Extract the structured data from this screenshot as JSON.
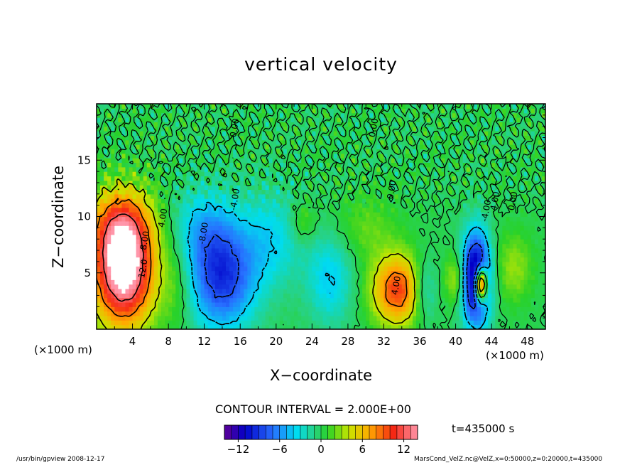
{
  "chart_data": {
    "type": "heatmap",
    "title": "vertical velocity",
    "xlabel": "X−coordinate",
    "ylabel": "Z−coordinate",
    "x_unit_left": "(×1000 m)",
    "x_unit_right": "(×1000 m)",
    "xlim": [
      0,
      50
    ],
    "ylim": [
      0,
      20
    ],
    "x_ticks": [
      "4",
      "8",
      "12",
      "16",
      "20",
      "24",
      "28",
      "32",
      "36",
      "40",
      "44",
      "48"
    ],
    "y_ticks": [
      "5",
      "10",
      "15"
    ],
    "contour_interval_text": "CONTOUR INTERVAL = 2.000E+00",
    "contour_interval": 2.0,
    "colorbar": {
      "range": [
        -14,
        14
      ],
      "tick_labels": [
        "−12",
        "−6",
        "0",
        "6",
        "12"
      ],
      "tick_values": [
        -12,
        -6,
        0,
        6,
        12
      ]
    },
    "contour_labels": [
      "4.00",
      "8.00",
      "12.0",
      "-8.00",
      "4.00",
      "-4.00",
      "0.00",
      "0.00",
      "0.00",
      "4.00",
      "-4.00",
      "0.00"
    ],
    "features": [
      {
        "x": 3.0,
        "z": 5.5,
        "value": 16,
        "sign": "updraft"
      },
      {
        "x": 14.0,
        "z": 4.5,
        "value": -8,
        "sign": "downdraft"
      },
      {
        "x": 33.5,
        "z": 3.5,
        "value": 8,
        "sign": "updraft"
      },
      {
        "x": 42.5,
        "z": 4.0,
        "value": -14,
        "sign": "downdraft"
      },
      {
        "x": 42.8,
        "z": 4.0,
        "value": 14,
        "sign": "updraft"
      }
    ],
    "time_label": "t=435000 s"
  },
  "footer": {
    "left": "/usr/bin/gpview   2008-12-17",
    "right": "MarsCond_VelZ.nc@VelZ,x=0:50000,z=0:20000,t=435000"
  }
}
